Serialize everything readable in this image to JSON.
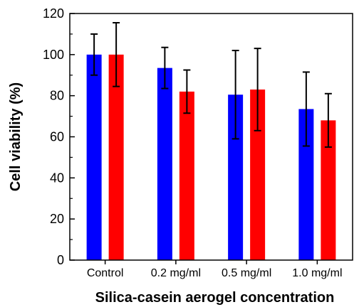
{
  "chart_data": {
    "type": "bar",
    "title": "",
    "xlabel": "Silica-casein aerogel concentration",
    "ylabel": "Cell viability (%)",
    "ylim": [
      0,
      120
    ],
    "yticks": [
      0,
      20,
      40,
      60,
      80,
      100,
      120
    ],
    "categories": [
      "Control",
      "0.2 mg/ml",
      "0.5 mg/ml",
      "1.0 mg/ml"
    ],
    "series": [
      {
        "color": "#0000ff",
        "values": [
          100,
          93.5,
          80.5,
          73.5
        ],
        "errors": [
          10,
          10,
          21.5,
          18
        ]
      },
      {
        "color": "#ff0000",
        "values": [
          100,
          82,
          83,
          68
        ],
        "errors": [
          15.5,
          10.5,
          20,
          13
        ]
      }
    ],
    "grid": false,
    "legend": "none"
  }
}
